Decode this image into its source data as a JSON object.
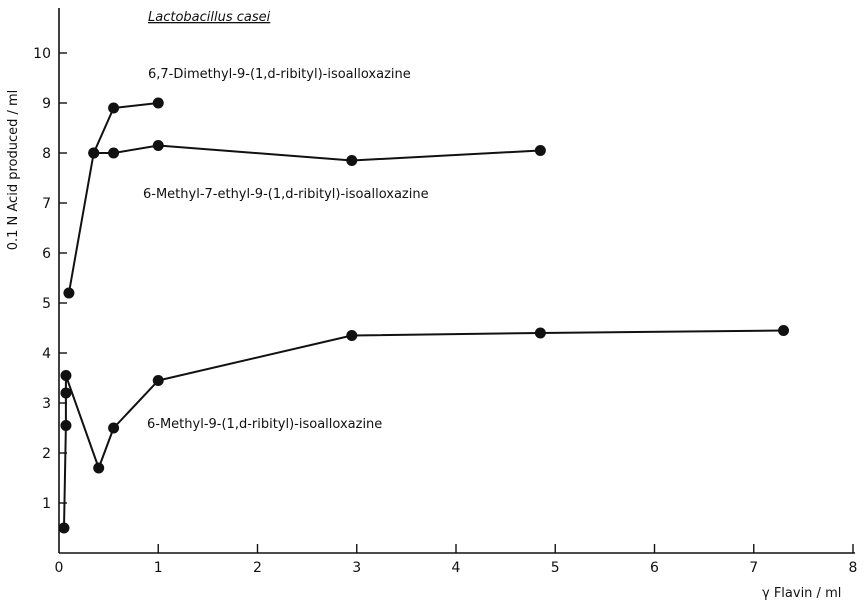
{
  "chart_data": {
    "type": "line",
    "title": "Lactobacillus casei",
    "xlabel": "γ Flavin / ml",
    "ylabel": "0.1 N Acid produced / ml",
    "xlim": [
      0,
      8
    ],
    "ylim": [
      0,
      11
    ],
    "xticks": [
      "0",
      "1",
      "2",
      "3",
      "4",
      "5",
      "6",
      "7",
      "8"
    ],
    "yticks": [
      "1",
      "2",
      "3",
      "4",
      "5",
      "6",
      "7",
      "8",
      "9",
      "10"
    ],
    "grid": false,
    "legend": "none; series labelled directly on chart",
    "series": [
      {
        "name": "6,7-Dimethyl-9-(1,d-ribityl)-isoalloxazine",
        "x": [
          0.1,
          0.35,
          0.55,
          1.0
        ],
        "y": [
          5.2,
          8.0,
          8.9,
          9.0
        ]
      },
      {
        "name": "6-Methyl-7-ethyl-9-(1,d-ribityl)-isoalloxazine",
        "x": [
          0.35,
          0.55,
          1.0,
          2.95,
          4.85
        ],
        "y": [
          8.0,
          8.0,
          8.15,
          7.85,
          8.05
        ]
      },
      {
        "name": "6-Methyl-9-(1,d-ribityl)-isoalloxazine",
        "x": [
          0.05,
          0.07,
          0.07,
          0.07,
          0.4,
          0.55,
          1.0,
          2.95,
          4.85,
          7.3
        ],
        "y": [
          0.5,
          2.55,
          3.2,
          3.55,
          1.7,
          2.5,
          3.45,
          4.35,
          4.4,
          4.45
        ]
      }
    ]
  }
}
